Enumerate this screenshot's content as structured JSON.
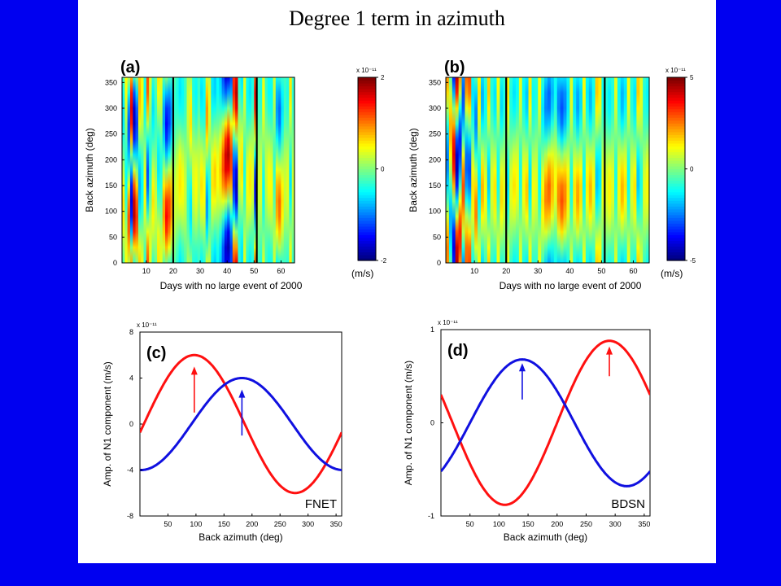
{
  "slide": {
    "title": "Degree 1 term in azimuth"
  },
  "chart_data": [
    {
      "id": "a",
      "type": "heatmap",
      "panel_label": "(a)",
      "xlabel": "Days with no large event of 2000",
      "ylabel": "Back azimuth (deg)",
      "x_ticks": [
        10,
        20,
        30,
        40,
        50,
        60
      ],
      "y_ticks": [
        0,
        50,
        100,
        150,
        200,
        250,
        300,
        350
      ],
      "xlim": [
        1,
        65
      ],
      "ylim": [
        0,
        360
      ],
      "event_lines_x": [
        20,
        51
      ],
      "colorbar": {
        "exponent_label": "x 10⁻¹¹",
        "min": -2,
        "max": 2,
        "tick_labels": [
          "2",
          "0",
          "-2"
        ],
        "unit": "(m/s)"
      },
      "columns": [
        {
          "x": 1,
          "amp": 0.6,
          "phase": 110
        },
        {
          "x": 2,
          "amp": -0.5,
          "phase": 170
        },
        {
          "x": 3,
          "amp": 1.2,
          "phase": 80
        },
        {
          "x": 4,
          "amp": -1.6,
          "phase": 120
        },
        {
          "x": 5,
          "amp": 1.8,
          "phase": 100
        },
        {
          "x": 6,
          "amp": 1.3,
          "phase": 90
        },
        {
          "x": 7,
          "amp": -0.8,
          "phase": 150
        },
        {
          "x": 8,
          "amp": -0.5,
          "phase": 150
        },
        {
          "x": 9,
          "amp": 0.5,
          "phase": 140
        },
        {
          "x": 10,
          "amp": -1.2,
          "phase": 170
        },
        {
          "x": 11,
          "amp": -0.4,
          "phase": 200
        },
        {
          "x": 12,
          "amp": 0.6,
          "phase": 120
        },
        {
          "x": 13,
          "amp": 0.3,
          "phase": 110
        },
        {
          "x": 14,
          "amp": -0.6,
          "phase": 190
        },
        {
          "x": 15,
          "amp": -0.4,
          "phase": 180
        },
        {
          "x": 16,
          "amp": 0.9,
          "phase": 100
        },
        {
          "x": 17,
          "amp": 1.5,
          "phase": 90
        },
        {
          "x": 18,
          "amp": 1.3,
          "phase": 100
        },
        {
          "x": 19,
          "amp": 0.9,
          "phase": 110
        },
        {
          "x": 20,
          "amp": 0.3,
          "phase": 120
        },
        {
          "x": 21,
          "amp": 0.4,
          "phase": 150
        },
        {
          "x": 22,
          "amp": 0.6,
          "phase": 160
        },
        {
          "x": 23,
          "amp": 0.5,
          "phase": 150
        },
        {
          "x": 24,
          "amp": 0.3,
          "phase": 140
        },
        {
          "x": 25,
          "amp": -0.3,
          "phase": 120
        },
        {
          "x": 26,
          "amp": -0.6,
          "phase": 100
        },
        {
          "x": 27,
          "amp": 0.4,
          "phase": 160
        },
        {
          "x": 28,
          "amp": 0.5,
          "phase": 150
        },
        {
          "x": 29,
          "amp": 0.3,
          "phase": 170
        },
        {
          "x": 30,
          "amp": 0.6,
          "phase": 150
        },
        {
          "x": 31,
          "amp": 0.5,
          "phase": 140
        },
        {
          "x": 32,
          "amp": -0.9,
          "phase": 110
        },
        {
          "x": 33,
          "amp": -0.4,
          "phase": 130
        },
        {
          "x": 34,
          "amp": 0.6,
          "phase": 160
        },
        {
          "x": 35,
          "amp": 0.7,
          "phase": 170
        },
        {
          "x": 36,
          "amp": 0.5,
          "phase": 170
        },
        {
          "x": 37,
          "amp": 0.7,
          "phase": 180
        },
        {
          "x": 38,
          "amp": 1.2,
          "phase": 190
        },
        {
          "x": 39,
          "amp": 1.7,
          "phase": 200
        },
        {
          "x": 40,
          "amp": 1.8,
          "phase": 210
        },
        {
          "x": 41,
          "amp": 1.3,
          "phase": 200
        },
        {
          "x": 42,
          "amp": -1.4,
          "phase": 160
        },
        {
          "x": 43,
          "amp": -1.8,
          "phase": 150
        },
        {
          "x": 44,
          "amp": 0.4,
          "phase": 200
        },
        {
          "x": 45,
          "amp": 0.6,
          "phase": 190
        },
        {
          "x": 46,
          "amp": -0.4,
          "phase": 170
        },
        {
          "x": 47,
          "amp": 0.5,
          "phase": 150
        },
        {
          "x": 48,
          "amp": 0.6,
          "phase": 160
        },
        {
          "x": 49,
          "amp": 0.4,
          "phase": 170
        },
        {
          "x": 50,
          "amp": -1.5,
          "phase": 140
        },
        {
          "x": 51,
          "amp": 0.3,
          "phase": 150
        },
        {
          "x": 52,
          "amp": 0.4,
          "phase": 160
        },
        {
          "x": 53,
          "amp": -0.5,
          "phase": 140
        },
        {
          "x": 54,
          "amp": 0.3,
          "phase": 170
        },
        {
          "x": 55,
          "amp": 0.5,
          "phase": 160
        },
        {
          "x": 56,
          "amp": 0.5,
          "phase": 150
        },
        {
          "x": 57,
          "amp": -0.3,
          "phase": 180
        },
        {
          "x": 58,
          "amp": 0.9,
          "phase": 120
        },
        {
          "x": 59,
          "amp": 1.1,
          "phase": 110
        },
        {
          "x": 60,
          "amp": 0.6,
          "phase": 120
        },
        {
          "x": 61,
          "amp": 0.3,
          "phase": 150
        },
        {
          "x": 62,
          "amp": 0.4,
          "phase": 150
        },
        {
          "x": 63,
          "amp": -0.6,
          "phase": 160
        },
        {
          "x": 64,
          "amp": 0.3,
          "phase": 150
        }
      ]
    },
    {
      "id": "b",
      "type": "heatmap",
      "panel_label": "(b)",
      "xlabel": "Days with no large event of 2000",
      "ylabel": "Back azimuth (deg)",
      "x_ticks": [
        10,
        20,
        30,
        40,
        50,
        60
      ],
      "y_ticks": [
        0,
        50,
        100,
        150,
        200,
        250,
        300,
        350
      ],
      "xlim": [
        1,
        65
      ],
      "ylim": [
        0,
        360
      ],
      "event_lines_x": [
        20,
        51
      ],
      "colorbar": {
        "exponent_label": "x 10⁻¹¹",
        "min": -5,
        "max": 5,
        "tick_labels": [
          "5",
          "0",
          "-5"
        ],
        "unit": "(m/s)"
      },
      "columns": [
        {
          "x": 1,
          "amp": -2.5,
          "phase": 200
        },
        {
          "x": 2,
          "amp": 2.0,
          "phase": 260
        },
        {
          "x": 3,
          "amp": 4.0,
          "phase": 210
        },
        {
          "x": 4,
          "amp": -4.5,
          "phase": 190
        },
        {
          "x": 5,
          "amp": -3.5,
          "phase": 230
        },
        {
          "x": 6,
          "amp": 3.0,
          "phase": 140
        },
        {
          "x": 7,
          "amp": -2.8,
          "phase": 190
        },
        {
          "x": 8,
          "amp": -3.0,
          "phase": 180
        },
        {
          "x": 9,
          "amp": 1.5,
          "phase": 140
        },
        {
          "x": 10,
          "amp": 2.5,
          "phase": 100
        },
        {
          "x": 11,
          "amp": -1.5,
          "phase": 150
        },
        {
          "x": 12,
          "amp": 2.0,
          "phase": 140
        },
        {
          "x": 13,
          "amp": 1.2,
          "phase": 130
        },
        {
          "x": 14,
          "amp": -1.8,
          "phase": 160
        },
        {
          "x": 15,
          "amp": 1.0,
          "phase": 150
        },
        {
          "x": 16,
          "amp": 1.5,
          "phase": 140
        },
        {
          "x": 17,
          "amp": -1.2,
          "phase": 170
        },
        {
          "x": 18,
          "amp": 1.6,
          "phase": 130
        },
        {
          "x": 19,
          "amp": 1.0,
          "phase": 140
        },
        {
          "x": 20,
          "amp": -1.5,
          "phase": 150
        },
        {
          "x": 21,
          "amp": 1.0,
          "phase": 140
        },
        {
          "x": 22,
          "amp": 1.5,
          "phase": 150
        },
        {
          "x": 23,
          "amp": 1.2,
          "phase": 160
        },
        {
          "x": 24,
          "amp": -1.0,
          "phase": 170
        },
        {
          "x": 25,
          "amp": 1.3,
          "phase": 150
        },
        {
          "x": 26,
          "amp": 1.8,
          "phase": 140
        },
        {
          "x": 27,
          "amp": -1.5,
          "phase": 160
        },
        {
          "x": 28,
          "amp": 1.2,
          "phase": 140
        },
        {
          "x": 29,
          "amp": 1.0,
          "phase": 150
        },
        {
          "x": 30,
          "amp": -1.2,
          "phase": 160
        },
        {
          "x": 31,
          "amp": 1.5,
          "phase": 120
        },
        {
          "x": 32,
          "amp": 2.5,
          "phase": 130
        },
        {
          "x": 33,
          "amp": 2.8,
          "phase": 140
        },
        {
          "x": 34,
          "amp": 2.0,
          "phase": 150
        },
        {
          "x": 35,
          "amp": 1.2,
          "phase": 160
        },
        {
          "x": 36,
          "amp": 2.5,
          "phase": 130
        },
        {
          "x": 37,
          "amp": 3.0,
          "phase": 120
        },
        {
          "x": 38,
          "amp": 2.5,
          "phase": 130
        },
        {
          "x": 39,
          "amp": 1.5,
          "phase": 140
        },
        {
          "x": 40,
          "amp": -1.0,
          "phase": 150
        },
        {
          "x": 41,
          "amp": 1.5,
          "phase": 140
        },
        {
          "x": 42,
          "amp": 2.2,
          "phase": 130
        },
        {
          "x": 43,
          "amp": 1.6,
          "phase": 140
        },
        {
          "x": 44,
          "amp": -1.2,
          "phase": 160
        },
        {
          "x": 45,
          "amp": 1.4,
          "phase": 150
        },
        {
          "x": 46,
          "amp": 2.0,
          "phase": 140
        },
        {
          "x": 47,
          "amp": 1.2,
          "phase": 150
        },
        {
          "x": 48,
          "amp": -1.8,
          "phase": 160
        },
        {
          "x": 49,
          "amp": -1.5,
          "phase": 170
        },
        {
          "x": 50,
          "amp": 1.2,
          "phase": 150
        },
        {
          "x": 51,
          "amp": 1.0,
          "phase": 140
        },
        {
          "x": 52,
          "amp": 1.4,
          "phase": 140
        },
        {
          "x": 53,
          "amp": 1.0,
          "phase": 150
        },
        {
          "x": 54,
          "amp": -1.0,
          "phase": 160
        },
        {
          "x": 55,
          "amp": 1.3,
          "phase": 150
        },
        {
          "x": 56,
          "amp": 2.0,
          "phase": 140
        },
        {
          "x": 57,
          "amp": 1.5,
          "phase": 150
        },
        {
          "x": 58,
          "amp": -1.2,
          "phase": 160
        },
        {
          "x": 59,
          "amp": 1.0,
          "phase": 150
        },
        {
          "x": 60,
          "amp": 1.5,
          "phase": 140
        },
        {
          "x": 61,
          "amp": -1.8,
          "phase": 160
        },
        {
          "x": 62,
          "amp": -1.0,
          "phase": 150
        },
        {
          "x": 63,
          "amp": 1.0,
          "phase": 140
        },
        {
          "x": 64,
          "amp": 1.3,
          "phase": 150
        }
      ]
    },
    {
      "id": "c",
      "type": "line",
      "panel_label": "(c)",
      "network_label": "FNET",
      "xlabel": "Back azimuth (deg)",
      "ylabel": "Amp. of N1 component (m/s)",
      "exponent_label": "x 10⁻¹¹",
      "xlim": [
        0,
        360
      ],
      "ylim": [
        -8,
        8
      ],
      "x_ticks": [
        50,
        100,
        150,
        200,
        250,
        300,
        350
      ],
      "y_ticks": [
        -8,
        -4,
        0,
        4,
        8
      ],
      "y_tick_labels": [
        "-8",
        "-4",
        "0",
        "4",
        "8"
      ],
      "series": [
        {
          "color": "#ff1010",
          "amplitude": 6.0,
          "peak_azimuth": 97,
          "x": [
            0,
            30,
            60,
            90,
            120,
            150,
            180,
            210,
            240,
            270,
            300,
            330,
            360
          ],
          "y": [
            0.0,
            2.9,
            5.2,
            5.9,
            5.4,
            3.5,
            0.7,
            -2.4,
            -4.9,
            -5.9,
            -5.5,
            -3.4,
            -0.7
          ]
        },
        {
          "color": "#1010e0",
          "amplitude": 4.0,
          "peak_azimuth": 182,
          "x": [
            0,
            30,
            60,
            90,
            120,
            150,
            180,
            210,
            240,
            270,
            300,
            330,
            360
          ],
          "y": [
            -4.0,
            -3.5,
            -2.1,
            -0.1,
            1.9,
            3.4,
            4.0,
            3.5,
            2.1,
            0.2,
            -1.8,
            -3.4,
            -4.0
          ]
        }
      ],
      "arrows": [
        {
          "color": "#ff1010",
          "x": 97,
          "y_tail": 1.0,
          "y_head": 5.0
        },
        {
          "color": "#1010e0",
          "x": 182,
          "y_tail": -1.0,
          "y_head": 3.0
        }
      ]
    },
    {
      "id": "d",
      "type": "line",
      "panel_label": "(d)",
      "network_label": "BDSN",
      "xlabel": "Back azimuth (deg)",
      "ylabel": "Amp. of N1 component (m/s)",
      "exponent_label": "x 10⁻¹¹",
      "xlim": [
        0,
        360
      ],
      "ylim": [
        -1,
        1
      ],
      "x_ticks": [
        50,
        100,
        150,
        200,
        250,
        300,
        350
      ],
      "y_ticks": [
        -1,
        0,
        1
      ],
      "y_tick_labels": [
        "-1",
        "0",
        "1"
      ],
      "series": [
        {
          "color": "#ff1010",
          "amplitude": 0.88,
          "peak_azimuth": 290,
          "x": [
            0,
            30,
            60,
            90,
            120,
            150,
            180,
            210,
            240,
            270,
            300,
            330,
            360
          ],
          "y": [
            0.3,
            -0.2,
            -0.6,
            -0.85,
            -0.85,
            -0.6,
            -0.3,
            0.2,
            0.6,
            0.85,
            0.86,
            0.6,
            0.3
          ]
        },
        {
          "color": "#1010e0",
          "amplitude": 0.68,
          "peak_azimuth": 140,
          "x": [
            0,
            30,
            60,
            90,
            120,
            150,
            180,
            210,
            240,
            270,
            300,
            330,
            360
          ],
          "y": [
            -0.52,
            -0.17,
            0.24,
            0.55,
            0.68,
            0.63,
            0.42,
            0.0,
            -0.43,
            -0.63,
            -0.67,
            -0.55,
            -0.52
          ]
        }
      ],
      "arrows": [
        {
          "color": "#ff1010",
          "x": 290,
          "y_tail": 0.5,
          "y_head": 0.82
        },
        {
          "color": "#1010e0",
          "x": 140,
          "y_tail": 0.25,
          "y_head": 0.64
        }
      ]
    }
  ]
}
